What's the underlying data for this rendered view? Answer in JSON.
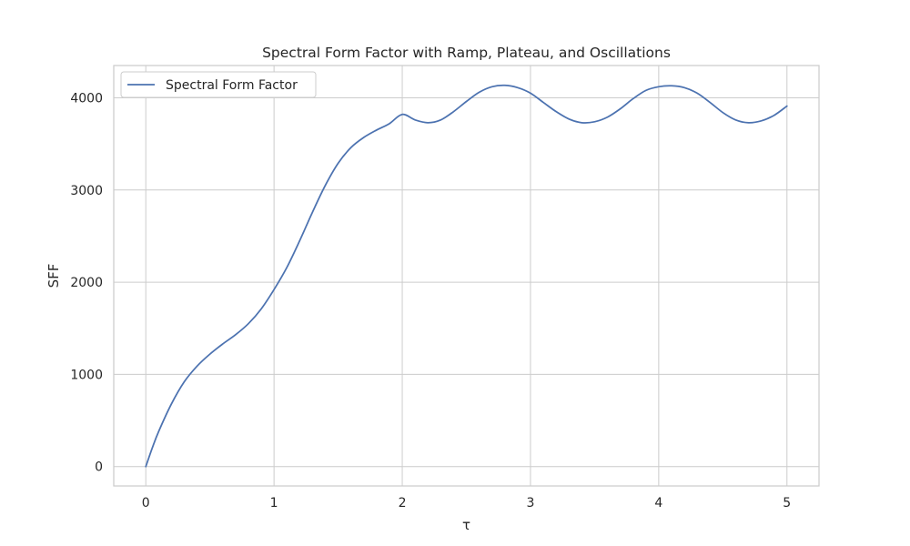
{
  "chart_data": {
    "type": "line",
    "title": "Spectral Form Factor with Ramp, Plateau, and Oscillations",
    "xlabel": "τ",
    "ylabel": "SFF",
    "xlim": [
      -0.25,
      5.25
    ],
    "ylim": [
      -210,
      4350
    ],
    "xticks": [
      0,
      1,
      2,
      3,
      4,
      5
    ],
    "xtick_labels": [
      "0",
      "1",
      "2",
      "3",
      "4",
      "5"
    ],
    "yticks": [
      0,
      1000,
      2000,
      3000,
      4000
    ],
    "ytick_labels": [
      "0",
      "1000",
      "2000",
      "3000",
      "4000"
    ],
    "grid": true,
    "legend_position": "upper-left",
    "series": [
      {
        "name": "Spectral Form Factor",
        "color": "#4c72b0",
        "x": [
          0,
          0.05,
          0.1,
          0.2,
          0.3,
          0.4,
          0.5,
          0.6,
          0.7,
          0.8,
          0.9,
          1.0,
          1.1,
          1.2,
          1.3,
          1.4,
          1.5,
          1.6,
          1.7,
          1.8,
          1.9,
          2.0,
          2.1,
          2.2,
          2.3,
          2.4,
          2.5,
          2.6,
          2.7,
          2.8,
          2.9,
          3.0,
          3.1,
          3.2,
          3.3,
          3.4,
          3.5,
          3.6,
          3.7,
          3.8,
          3.9,
          4.0,
          4.1,
          4.2,
          4.3,
          4.4,
          4.5,
          4.6,
          4.7,
          4.8,
          4.9,
          5.0
        ],
        "y": [
          0,
          200,
          380,
          680,
          920,
          1090,
          1220,
          1330,
          1430,
          1550,
          1710,
          1920,
          2160,
          2450,
          2760,
          3050,
          3290,
          3460,
          3570,
          3650,
          3720,
          3820,
          3760,
          3730,
          3760,
          3850,
          3960,
          4060,
          4120,
          4135,
          4110,
          4050,
          3950,
          3850,
          3770,
          3730,
          3740,
          3790,
          3880,
          3990,
          4080,
          4120,
          4130,
          4110,
          4050,
          3950,
          3840,
          3760,
          3730,
          3750,
          3810,
          3910
        ]
      }
    ]
  }
}
